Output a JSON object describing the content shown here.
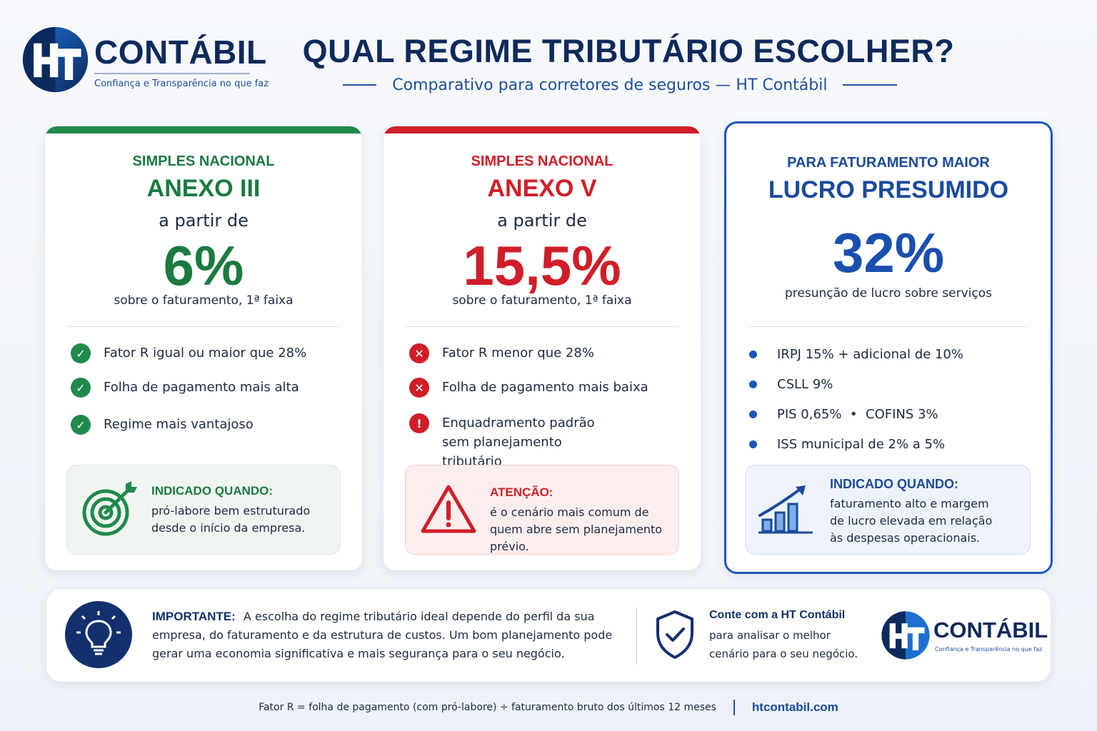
{
  "brand": {
    "name": "CONTÁBIL",
    "tagline": "Confiança e Transparência no que faz"
  },
  "header": {
    "title": "QUAL REGIME TRIBUTÁRIO ESCOLHER?",
    "subtitle": "Comparativo para corretores de seguros — HT Contábil"
  },
  "cards": [
    {
      "kicker": "SIMPLES NACIONAL",
      "name": "ANEXO III",
      "from": "a partir de",
      "rate": "6%",
      "note": "sobre o faturamento, 1ª faixa",
      "accent": "#1f8a4c",
      "items": [
        {
          "icon": "check-icon",
          "text": "Fator R igual ou maior que 28%"
        },
        {
          "icon": "check-icon",
          "text": "Folha de pagamento mais alta"
        },
        {
          "icon": "check-icon",
          "text": "Regime mais vantajoso"
        }
      ],
      "box": {
        "icon": "target-icon",
        "title": "INDICADO QUANDO:",
        "text": "pró-labore bem estruturado desde o início da empresa."
      }
    },
    {
      "kicker": "SIMPLES NACIONAL",
      "name": "ANEXO V",
      "from": "a partir de",
      "rate": "15,5%",
      "note": "sobre o faturamento, 1ª faixa",
      "accent": "#d01e28",
      "items": [
        {
          "icon": "x-icon",
          "text": "Fator R menor que 28%"
        },
        {
          "icon": "x-icon",
          "text": "Folha de pagamento mais baixa"
        },
        {
          "icon": "exclamation-icon",
          "text": "Enquadramento padrão sem planejamento tributário"
        }
      ],
      "box": {
        "icon": "warning-icon",
        "title": "ATENÇÃO:",
        "text": "é o cenário mais comum de quem abre sem planejamento prévio."
      }
    },
    {
      "kicker": "PARA FATURAMENTO MAIOR",
      "name": "LUCRO PRESUMIDO",
      "rate": "32%",
      "note": "presunção de lucro sobre serviços",
      "accent": "#1a56b8",
      "items": [
        {
          "icon": "bullet-icon",
          "text": "IRPJ 15% + adicional de 10%"
        },
        {
          "icon": "bullet-icon",
          "text": "CSLL 9%"
        },
        {
          "icon": "bullet-icon",
          "text": "PIS 0,65%  •  COFINS 3%"
        },
        {
          "icon": "bullet-icon",
          "text": "ISS municipal de 2% a 5%"
        }
      ],
      "box": {
        "icon": "growth-chart-icon",
        "title": "INDICADO QUANDO:",
        "text": "faturamento alto e margem de lucro elevada em relação às despesas operacionais."
      }
    }
  ],
  "important": {
    "icon": "lightbulb-icon",
    "label": "IMPORTANTE:",
    "text": "A escolha do regime tributário ideal depende do perfil da sua empresa, do faturamento e da estrutura de custos. Um bom planejamento pode gerar uma economia significativa e mais segurança para o seu negócio."
  },
  "cta": {
    "icon": "shield-check-icon",
    "title": "Conte com a HT Contábil",
    "text": "para analisar o melhor cenário para o seu negócio."
  },
  "footer": {
    "note": "Fator R = folha de pagamento (com pró-labore) ÷ faturamento bruto dos últimos 12 meses",
    "url": "htcontabil.com"
  }
}
